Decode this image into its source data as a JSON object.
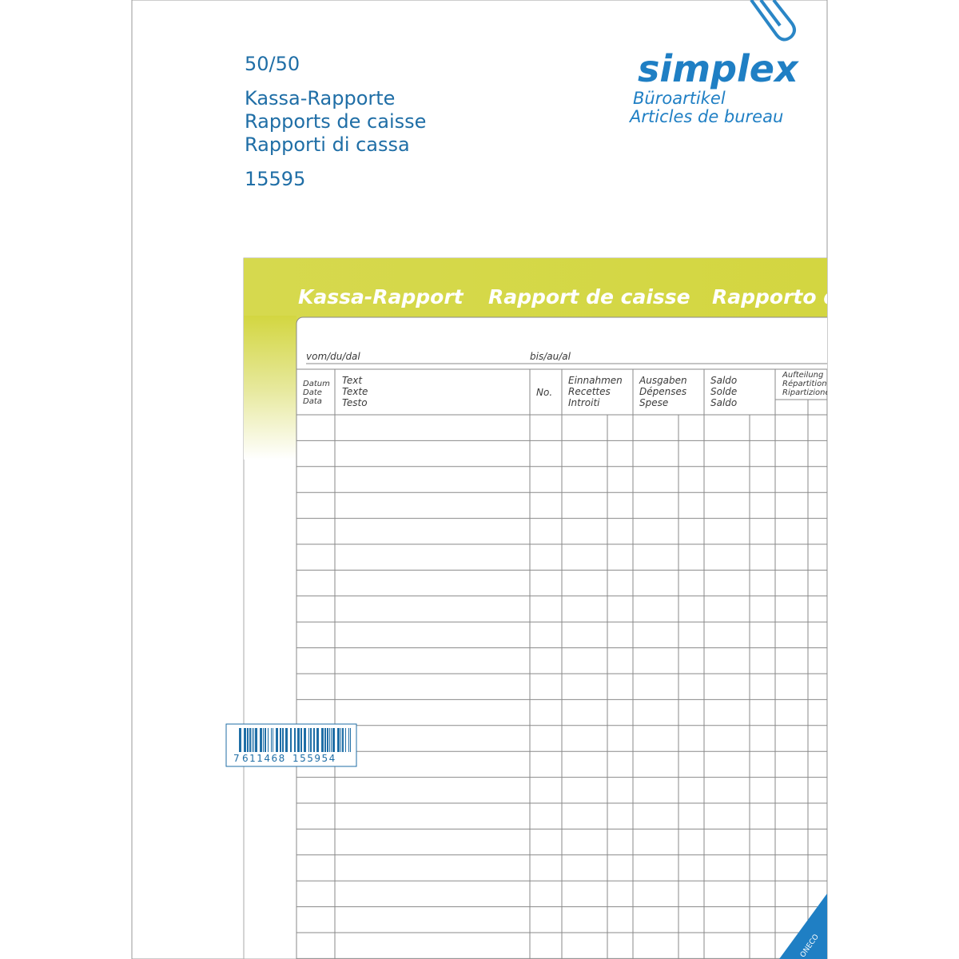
{
  "cover": {
    "quantity": "50/50",
    "titles": [
      "Kassa-Rapporte",
      "Rapports de caisse",
      "Rapporti di cassa"
    ],
    "article_number": "15595"
  },
  "brand": {
    "name": "simplex",
    "tagline": [
      "Büroartikel",
      "Articles de bureau"
    ]
  },
  "form": {
    "titles": [
      "Kassa-Rapport",
      "Rapport de caisse",
      "Rapporto di cassa"
    ],
    "period": {
      "from": "vom/du/dal",
      "to": "bis/au/al"
    },
    "columns": [
      [
        "Datum",
        "Date",
        "Data"
      ],
      [
        "Text",
        "Texte",
        "Testo"
      ],
      [
        "No."
      ],
      [
        "Einnahmen",
        "Recettes",
        "Introiti"
      ],
      [
        "Ausgaben",
        "Dépenses",
        "Spese"
      ],
      [
        "Saldo",
        "Solde",
        "Saldo"
      ],
      [
        "Aufteilung",
        "Répartition",
        "Ripartizione"
      ]
    ]
  },
  "barcode": {
    "digits": [
      "7",
      "611468",
      "155954"
    ]
  },
  "corner_label": "ONECO"
}
